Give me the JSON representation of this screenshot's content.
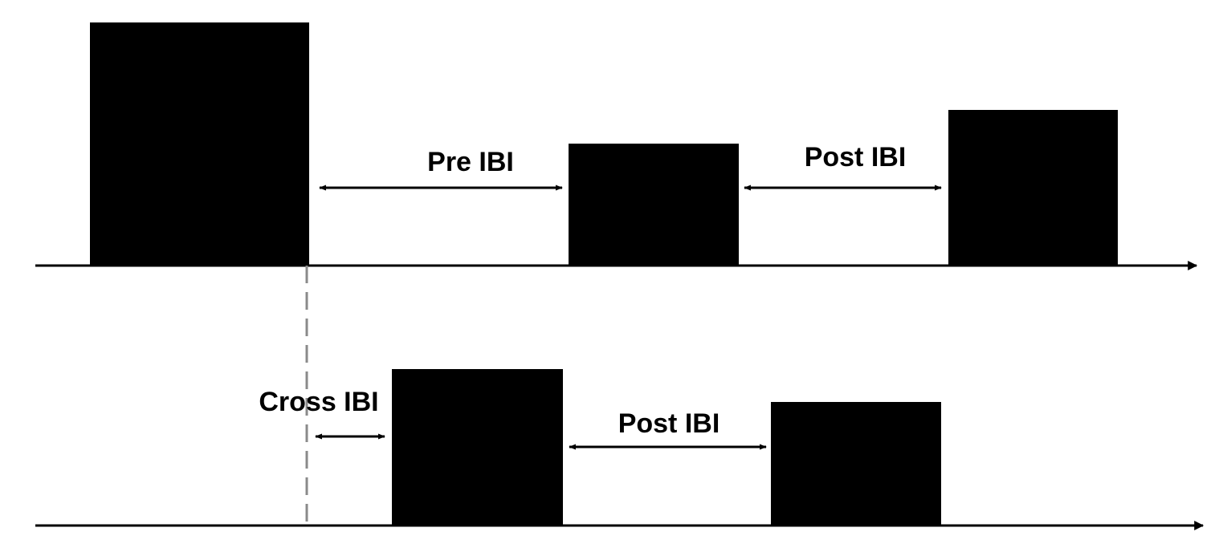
{
  "colors": {
    "bars": "#000000",
    "axis": "#000000",
    "marker_line": "#8a8a8a",
    "background": "#ffffff"
  },
  "top_row": {
    "pre_label": "Pre IBI",
    "post_label": "Post IBI"
  },
  "bottom_row": {
    "cross_label": "Cross IBI",
    "post_label": "Post IBI"
  }
}
